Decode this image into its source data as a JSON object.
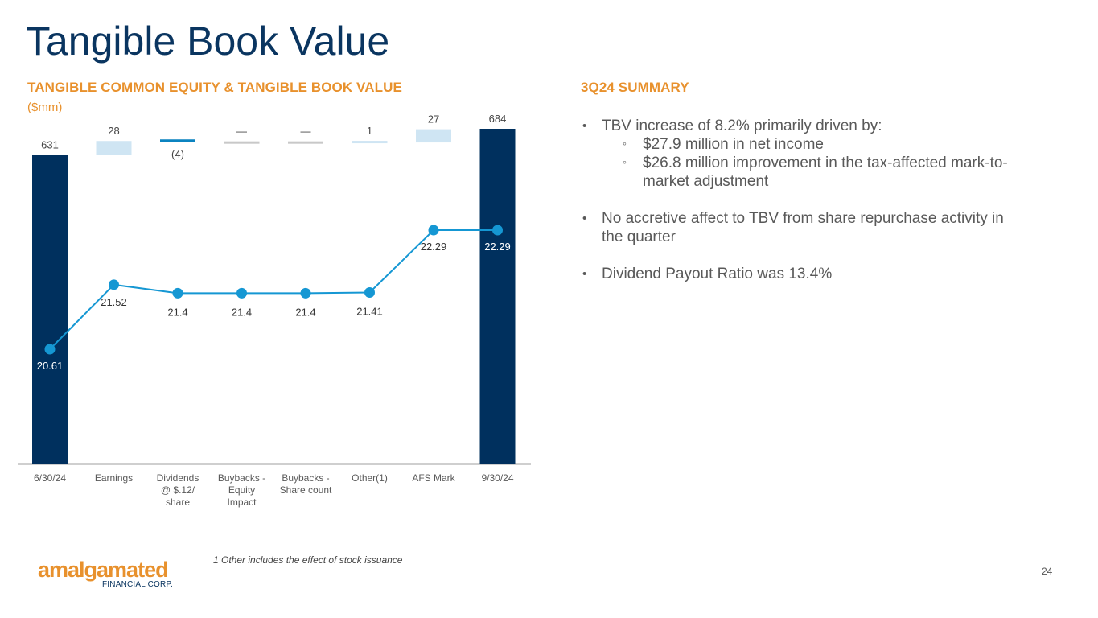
{
  "page": {
    "title": "Tangible Book Value",
    "page_number": "24",
    "footnote": "1 Other includes the effect of stock issuance",
    "logo": {
      "word": "amalgamated",
      "sub": "FINANCIAL CORP."
    }
  },
  "left": {
    "heading": "TANGIBLE COMMON EQUITY & TANGIBLE BOOK VALUE",
    "unit": "($mm)"
  },
  "right": {
    "heading": "3Q24 SUMMARY",
    "bullet1": "TBV increase of 8.2% primarily driven by:",
    "sub1": "$27.9 million in net income",
    "sub2a": "$26.8 million improvement in the tax-affected mark-to-",
    "sub2b": "market adjustment",
    "bullet2a": "No accretive affect to TBV from share repurchase activity in",
    "bullet2b": "the quarter",
    "bullet3": "Dividend Payout Ratio was 13.4%"
  },
  "colors": {
    "total_bar": "#00305e",
    "increase_bar": "#cfe5f3",
    "decrease_bar": "#0b83c0",
    "line": "#1597d3",
    "heading": "#e8912d",
    "title": "#0a3560"
  },
  "chart_data": {
    "type": "bar",
    "subtype": "waterfall-with-line",
    "categories": [
      [
        "6/30/24"
      ],
      [
        "Earnings"
      ],
      [
        "Dividends",
        "@ $.12/",
        "share"
      ],
      [
        "Buybacks -",
        "Equity",
        "Impact"
      ],
      [
        "Buybacks -",
        "Share count"
      ],
      [
        "Other(1)"
      ],
      [
        "AFS Mark"
      ],
      [
        "9/30/24"
      ]
    ],
    "bars": {
      "name": "Tangible common equity",
      "kinds": [
        "total",
        "delta",
        "delta",
        "delta",
        "delta",
        "delta",
        "delta",
        "total"
      ],
      "values": [
        631,
        28,
        -4,
        0,
        0,
        1,
        27,
        684
      ],
      "labels": [
        "631",
        "28",
        "(4)",
        "—",
        "—",
        "1",
        "27",
        "684"
      ]
    },
    "line": {
      "name": "Tangible book value",
      "values": [
        20.61,
        21.52,
        21.4,
        21.4,
        21.4,
        21.41,
        22.29,
        22.29
      ],
      "labels": [
        "20.61",
        "21.52",
        "21.4",
        "21.4",
        "21.4",
        "21.41",
        "22.29",
        "22.29"
      ]
    },
    "legend": "none",
    "grid": false
  }
}
